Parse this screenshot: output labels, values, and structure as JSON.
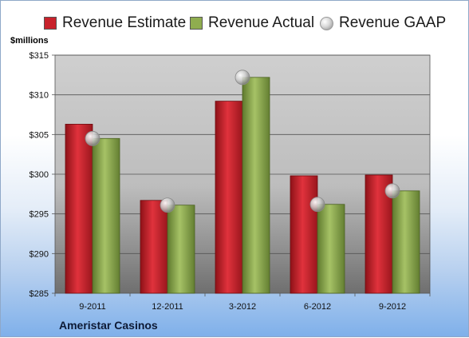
{
  "legend": {
    "estimate": "Revenue Estimate",
    "actual": "Revenue Actual",
    "gaap": "Revenue GAAP"
  },
  "units_label": "$millions",
  "company": "Ameristar Casinos",
  "colors": {
    "estimate": "#c8222b",
    "actual": "#8fad4f",
    "gaap": "#c9c9c9"
  },
  "chart_data": {
    "type": "bar",
    "categories": [
      "9-2011",
      "12-2011",
      "3-2012",
      "6-2012",
      "9-2012"
    ],
    "series": [
      {
        "name": "Revenue Estimate",
        "values": [
          306.3,
          296.7,
          309.2,
          299.8,
          299.9
        ]
      },
      {
        "name": "Revenue Actual",
        "values": [
          304.5,
          296.1,
          312.2,
          296.2,
          297.9
        ]
      },
      {
        "name": "Revenue GAAP",
        "type": "scatter",
        "values": [
          304.5,
          296.1,
          312.2,
          296.2,
          297.9
        ]
      }
    ],
    "ylim": [
      285,
      315
    ],
    "yticks": [
      "$285",
      "$290",
      "$295",
      "$300",
      "$305",
      "$310",
      "$315"
    ],
    "ylabel": "$millions",
    "grid": true,
    "legend_position": "top"
  }
}
